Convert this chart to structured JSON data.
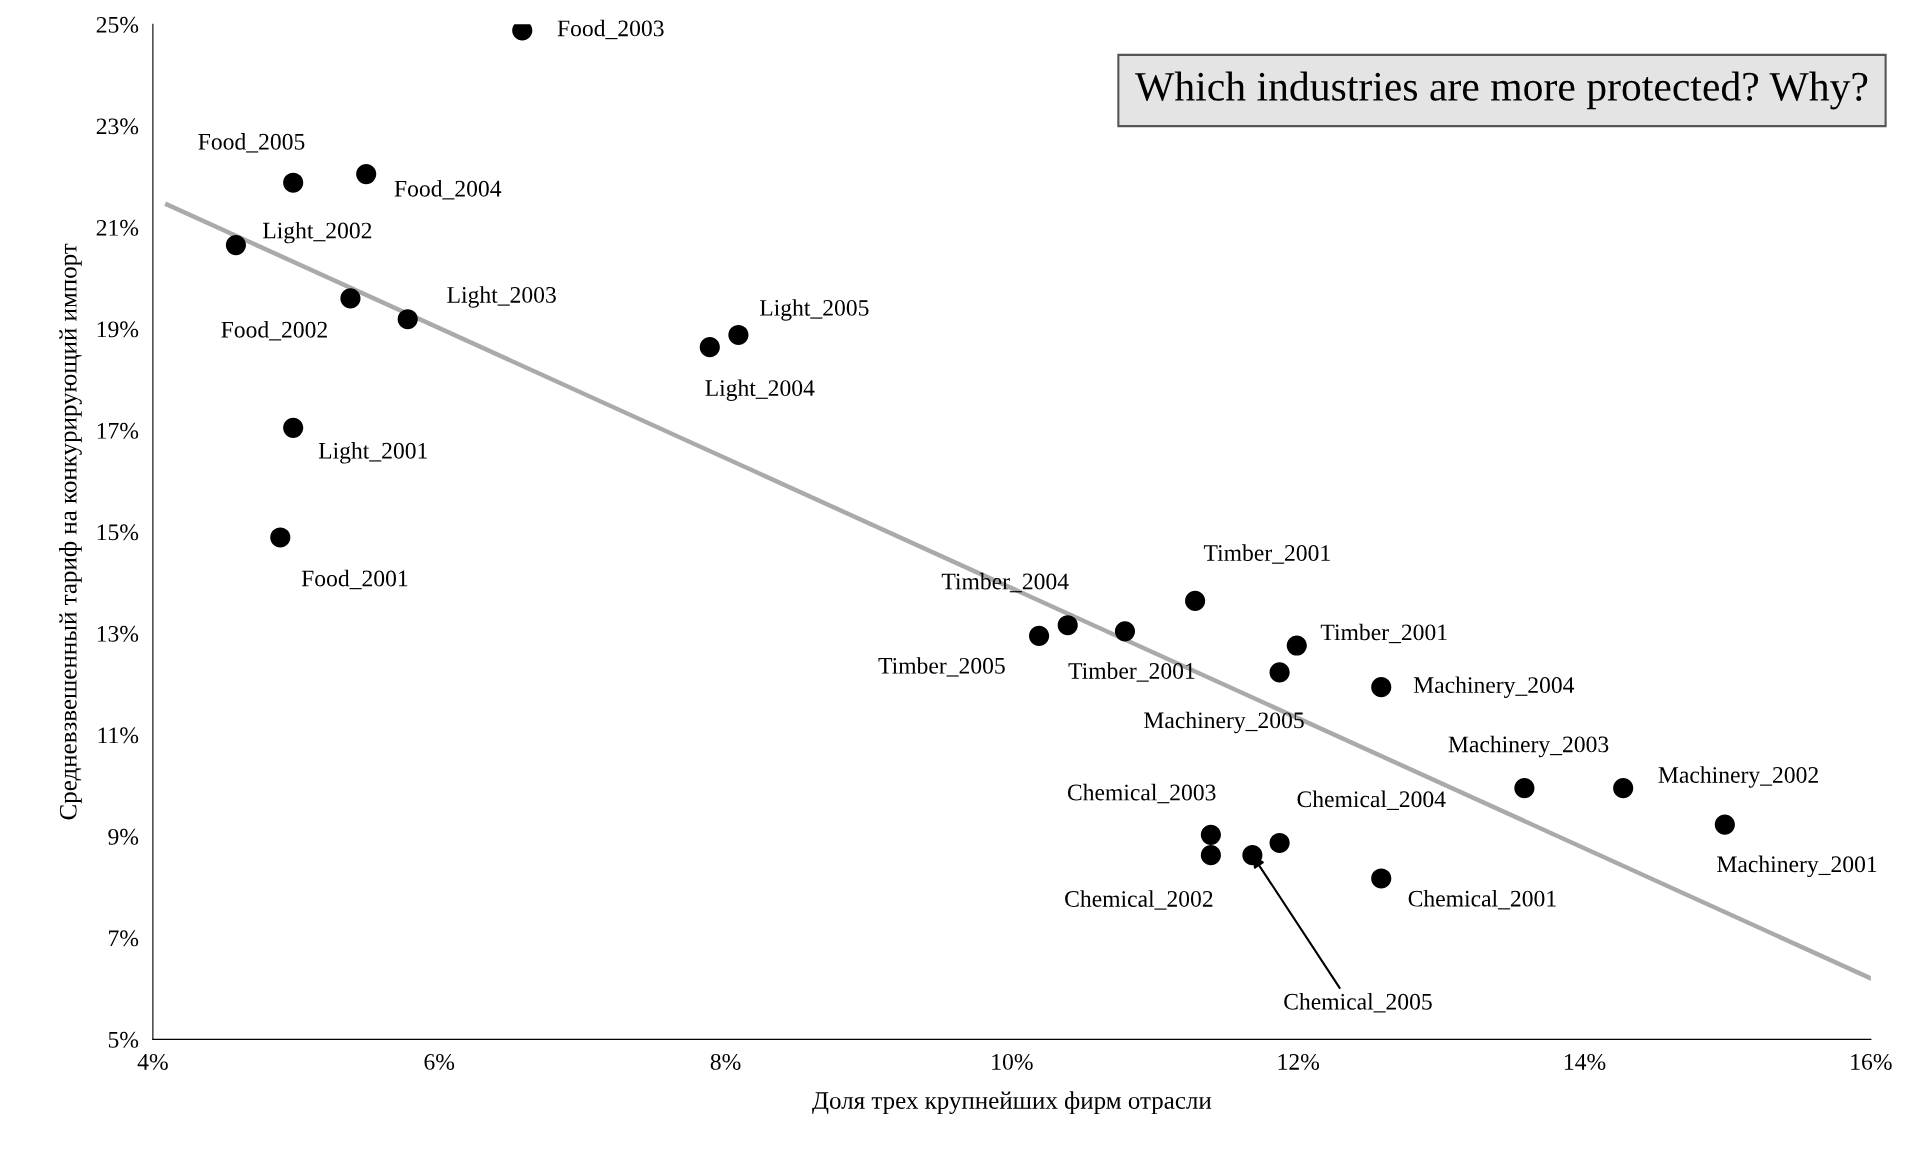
{
  "chart_data": {
    "type": "scatter",
    "xlabel": "Доля трех крупнейших фирм отрасли",
    "ylabel": "Средневзвешенный тариф на конкурирующий импорт",
    "xlim": [
      4,
      16
    ],
    "xticks": [
      {
        "value": 4,
        "label": "4%"
      },
      {
        "value": 6,
        "label": "6%"
      },
      {
        "value": 8,
        "label": "8%"
      },
      {
        "value": 10,
        "label": "10%"
      },
      {
        "value": 12,
        "label": "12%"
      },
      {
        "value": 14,
        "label": "14%"
      },
      {
        "value": 16,
        "label": "16%"
      }
    ],
    "ylim": [
      5,
      25
    ],
    "yticks": [
      {
        "value": 5,
        "label": "5%"
      },
      {
        "value": 7,
        "label": "7%"
      },
      {
        "value": 9,
        "label": "9%"
      },
      {
        "value": 11,
        "label": "11%"
      },
      {
        "value": 13,
        "label": "13%"
      },
      {
        "value": 15,
        "label": "15%"
      },
      {
        "value": 17,
        "label": "17%"
      },
      {
        "value": 19,
        "label": "19%"
      },
      {
        "value": 21,
        "label": "21%"
      },
      {
        "value": 23,
        "label": "23%"
      },
      {
        "value": 25,
        "label": "25%"
      }
    ],
    "grid": false,
    "series": [
      {
        "type": "scatter",
        "marker": "circle",
        "color": "#000000",
        "x": [
          6.58,
          4.98,
          5.49,
          4.58,
          5.38,
          5.78,
          8.09,
          7.89,
          4.98,
          4.89,
          10.19,
          10.39,
          10.79,
          11.28,
          11.99,
          11.87,
          12.58,
          13.58,
          14.27,
          14.98,
          11.39,
          11.39,
          11.68,
          11.87,
          12.58
        ],
        "values": [
          24.88,
          21.88,
          22.05,
          20.65,
          19.6,
          19.19,
          18.88,
          18.64,
          17.05,
          14.89,
          12.95,
          13.16,
          13.04,
          13.64,
          12.76,
          12.23,
          11.94,
          9.95,
          9.95,
          9.23,
          9.03,
          8.63,
          8.63,
          8.87,
          8.17
        ]
      },
      {
        "type": "line",
        "color": "#aaaaaa",
        "line_style": "solid",
        "x": [
          4.1,
          16
        ],
        "values": [
          21.45,
          6.2
        ]
      }
    ],
    "annotations": [
      {
        "text": "Food_2003",
        "x": 6.58,
        "y": 24.88
      },
      {
        "text": "Food_2005",
        "x": 4.98,
        "y": 21.88
      },
      {
        "text": "Food_2004",
        "x": 5.49,
        "y": 22.05
      },
      {
        "text": "Light_2002",
        "x": 4.58,
        "y": 20.65
      },
      {
        "text": "Food_2002",
        "x": 5.38,
        "y": 19.6
      },
      {
        "text": "Light_2003",
        "x": 5.78,
        "y": 19.19
      },
      {
        "text": "Light_2005",
        "x": 8.09,
        "y": 18.88
      },
      {
        "text": "Light_2004",
        "x": 7.89,
        "y": 18.64
      },
      {
        "text": "Light_2001",
        "x": 4.98,
        "y": 17.05
      },
      {
        "text": "Food_2001",
        "x": 4.89,
        "y": 14.89
      },
      {
        "text": "Timber_2005",
        "x": 10.19,
        "y": 12.95
      },
      {
        "text": "Timber_2004",
        "x": 10.39,
        "y": 13.16
      },
      {
        "text": "Timber_2001",
        "x": 10.79,
        "y": 13.04
      },
      {
        "text": "Timber_2001",
        "x": 11.28,
        "y": 13.64
      },
      {
        "text": "Timber_2001",
        "x": 11.99,
        "y": 12.76
      },
      {
        "text": "Machinery_2005",
        "x": 11.87,
        "y": 12.23
      },
      {
        "text": "Machinery_2004",
        "x": 12.58,
        "y": 11.94
      },
      {
        "text": "Machinery_2003",
        "x": 13.58,
        "y": 9.95
      },
      {
        "text": "Machinery_2002",
        "x": 14.27,
        "y": 9.95
      },
      {
        "text": "Machinery_2001",
        "x": 14.98,
        "y": 9.23
      },
      {
        "text": "Chemical_2003",
        "x": 11.39,
        "y": 9.03
      },
      {
        "text": "Chemical_2002",
        "x": 11.39,
        "y": 8.63
      },
      {
        "text": "Chemical_2005",
        "x": 11.68,
        "y": 8.63
      },
      {
        "text": "Chemical_2004",
        "x": 11.87,
        "y": 8.87
      },
      {
        "text": "Chemical_2001",
        "x": 12.58,
        "y": 8.17
      },
      "Which industries are more protected? Why?"
    ]
  }
}
